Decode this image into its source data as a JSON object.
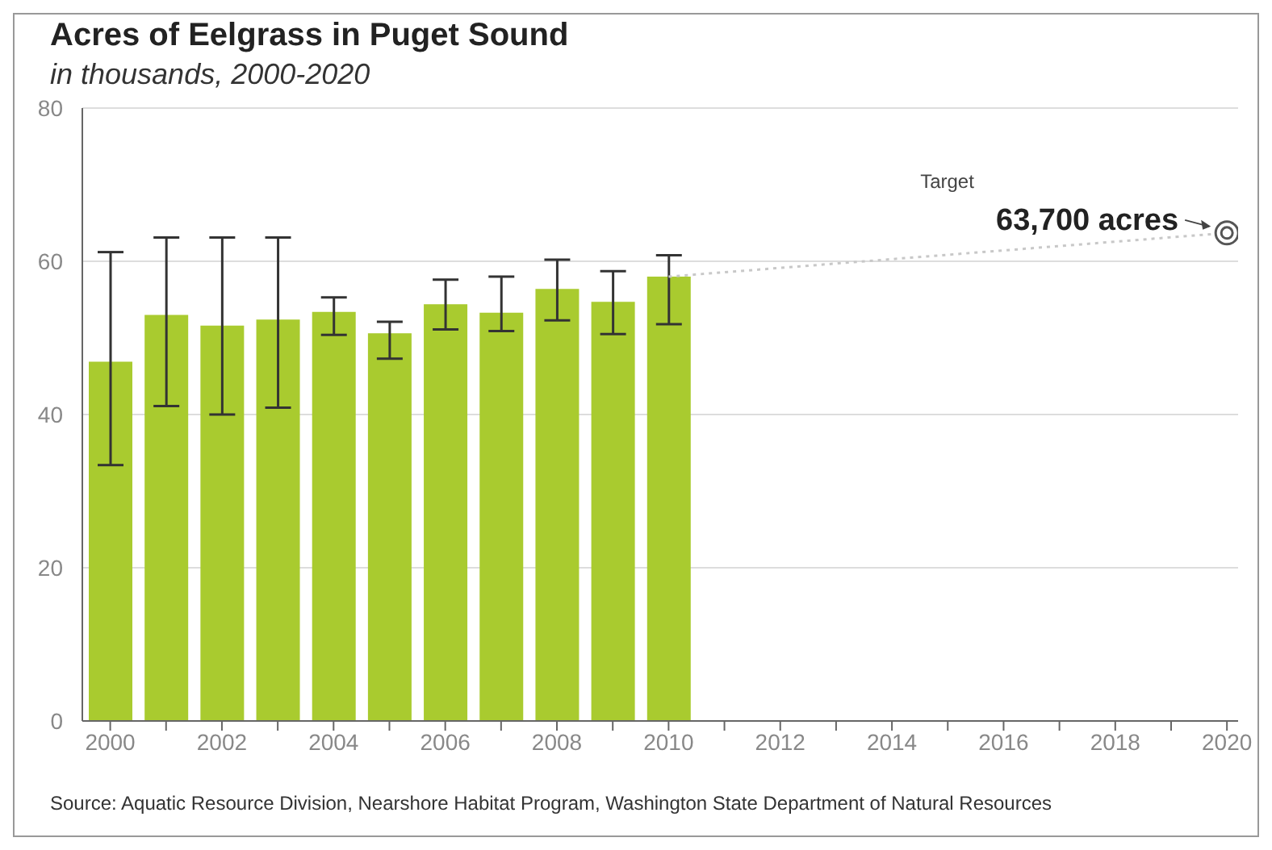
{
  "chart_data": {
    "type": "bar",
    "title": "Acres of Eelgrass in Puget Sound",
    "subtitle": "in thousands, 2000-2020",
    "xlim": [
      1999.5,
      2020.2
    ],
    "xticks": [
      2000,
      {
        "value": 2001,
        "label": null
      },
      2002,
      {
        "value": 2003,
        "label": null
      },
      2004,
      {
        "value": 2005,
        "label": null
      },
      2006,
      {
        "value": 2007,
        "label": null
      },
      2008,
      {
        "value": 2009,
        "label": null
      },
      2010,
      {
        "value": 2011,
        "label": null
      },
      2012,
      {
        "value": 2013,
        "label": null
      },
      2014,
      {
        "value": 2015,
        "label": null
      },
      2016,
      {
        "value": 2017,
        "label": null
      },
      2018,
      {
        "value": 2019,
        "label": null
      },
      2020
    ],
    "ylim": [
      0,
      80
    ],
    "yticks": [
      0,
      20,
      40,
      60,
      80
    ],
    "grid": "y",
    "legend": false,
    "series": [
      {
        "color": "#a9cb2f",
        "x": [
          2000,
          2001,
          2002,
          2003,
          2004,
          2005,
          2006,
          2007,
          2008,
          2009,
          2010
        ],
        "values": [
          46.9,
          53.0,
          51.6,
          52.4,
          53.4,
          50.6,
          54.4,
          53.3,
          56.4,
          54.7,
          58.0
        ],
        "errors": [
          [
            33.4,
            61.2
          ],
          [
            41.1,
            63.1
          ],
          [
            40.0,
            63.1
          ],
          [
            40.9,
            63.1
          ],
          [
            50.4,
            55.3
          ],
          [
            47.3,
            52.1
          ],
          [
            51.1,
            57.6
          ],
          [
            50.9,
            58.0
          ],
          [
            52.3,
            60.2
          ],
          [
            50.5,
            58.7
          ],
          [
            51.8,
            60.8
          ]
        ]
      },
      {
        "type": "line",
        "color": "#c8c8c8",
        "x": [
          2010,
          2020
        ],
        "values": [
          58.0,
          63.7
        ],
        "line_style": "dotted"
      },
      {
        "type": "scatter",
        "color": "#555555",
        "x": [
          2020
        ],
        "values": [
          63.7
        ],
        "marker": "circle"
      }
    ],
    "annotations": [
      "Target",
      {
        "text": "63,700 acres",
        "x": 2020,
        "y": 63.7
      },
      "Source: Aquatic Resource Division, Nearshore Habitat Program, Washington State Department of Natural Resources"
    ]
  }
}
